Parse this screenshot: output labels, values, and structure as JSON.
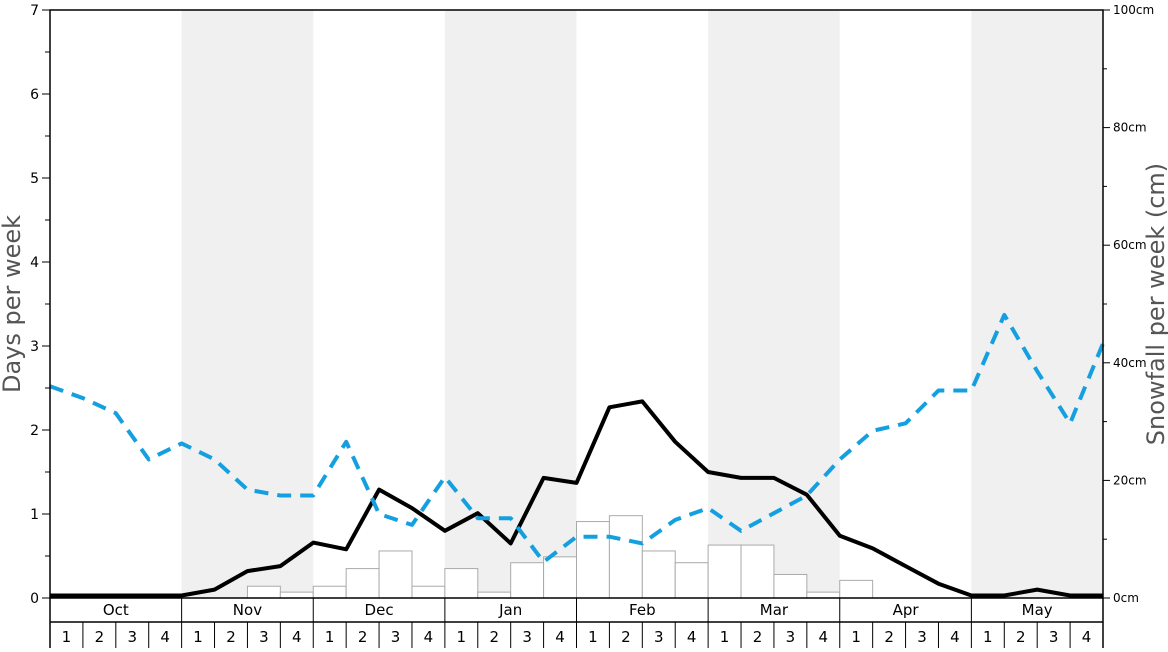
{
  "chart_data": {
    "type": "bar",
    "ylabel_left": "Days per week",
    "ylabel_right": "Snowfall per week (cm)",
    "y_left": {
      "range": [
        0,
        7
      ],
      "ticks": [
        "0",
        "1",
        "2",
        "3",
        "4",
        "5",
        "6",
        "7"
      ]
    },
    "y_right": {
      "range": [
        0,
        100
      ],
      "ticks": [
        "0cm",
        "20cm",
        "40cm",
        "60cm",
        "80cm",
        "100cm"
      ]
    },
    "months": [
      "Oct",
      "Nov",
      "Dec",
      "Jan",
      "Feb",
      "Mar",
      "Apr",
      "May"
    ],
    "week_labels": [
      "1",
      "2",
      "3",
      "4"
    ],
    "shaded_months": [
      "Nov",
      "Jan",
      "Mar",
      "May"
    ],
    "weeks": 32,
    "colors": {
      "black_line": "#000000",
      "blue_dashed": "#14a0e0",
      "bar_fill": "#ffffff",
      "bar_stroke": "#aaaaaa",
      "shade": "#f0f0f0"
    },
    "series": [
      {
        "type": "bar",
        "axis": "right",
        "values": [
          0,
          0,
          0,
          0,
          0,
          0,
          2,
          1,
          2,
          5,
          8,
          2,
          5,
          1,
          6,
          7,
          13,
          14,
          8,
          6,
          9,
          9,
          4,
          1,
          3,
          0,
          0,
          0,
          0,
          0,
          0,
          0
        ]
      },
      {
        "type": "line",
        "axis": "left",
        "style": "solid",
        "values": [
          0.03,
          0.03,
          0.03,
          0.03,
          0.03,
          0.1,
          0.32,
          0.38,
          0.66,
          0.58,
          1.29,
          1.07,
          0.8,
          1.01,
          0.65,
          1.43,
          1.37,
          2.27,
          2.34,
          1.86,
          1.5,
          1.43,
          1.43,
          1.23,
          0.74,
          0.59,
          0.38,
          0.17,
          0.03,
          0.03,
          0.1,
          0.03,
          0.03
        ]
      },
      {
        "type": "line",
        "axis": "left",
        "style": "dashed",
        "values": [
          2.52,
          2.38,
          2.2,
          1.65,
          1.84,
          1.65,
          1.29,
          1.22,
          1.22,
          1.86,
          1.0,
          0.87,
          1.44,
          0.95,
          0.95,
          0.43,
          0.73,
          0.73,
          0.65,
          0.93,
          1.07,
          0.8,
          1.01,
          1.22,
          1.65,
          1.99,
          2.08,
          2.47,
          2.47,
          3.37,
          2.7,
          2.08,
          3.03
        ]
      }
    ]
  }
}
